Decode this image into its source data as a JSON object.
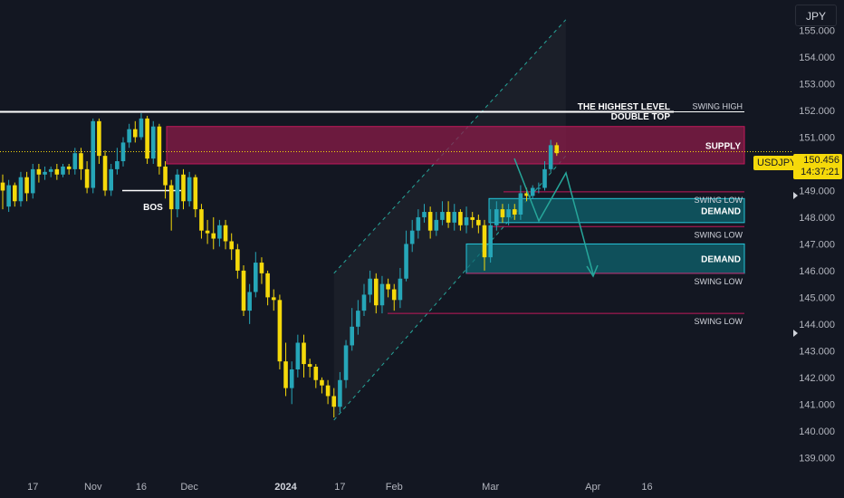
{
  "currency": "JPY",
  "symbol": "USDJPY",
  "last_price": "150.456",
  "countdown": "14:37:21",
  "colors": {
    "background": "#131722",
    "up": "#26a6b8",
    "down": "#f5d90a",
    "supply": "#8b1c48",
    "demand": "#0e6a73",
    "text": "#d1d4dc",
    "muted": "#787b86"
  },
  "chart_data": {
    "type": "candlestick",
    "y_axis": {
      "ticks": [
        "155.000",
        "154.000",
        "153.000",
        "152.000",
        "151.000",
        "150.000",
        "149.000",
        "148.000",
        "147.000",
        "146.000",
        "145.000",
        "144.000",
        "143.000",
        "142.000",
        "141.000",
        "140.000",
        "139.000"
      ],
      "range": [
        138.5,
        155.8
      ]
    },
    "x_axis": {
      "ticks": [
        {
          "label": "17",
          "index": 5
        },
        {
          "label": "Nov",
          "index": 15
        },
        {
          "label": "16",
          "index": 23
        },
        {
          "label": "Dec",
          "index": 31
        },
        {
          "label": "2024",
          "index": 47
        },
        {
          "label": "17",
          "index": 56
        },
        {
          "label": "Feb",
          "index": 65
        },
        {
          "label": "Mar",
          "index": 81
        },
        {
          "label": "Apr",
          "index": 98
        },
        {
          "label": "16",
          "index": 107
        }
      ]
    },
    "candles": [
      [
        149.3,
        149.0,
        148.3,
        149.6
      ],
      [
        148.4,
        149.2,
        148.2,
        149.4
      ],
      [
        149.2,
        148.6,
        148.4,
        149.3
      ],
      [
        148.6,
        149.5,
        148.4,
        149.7
      ],
      [
        149.5,
        148.9,
        148.6,
        149.7
      ],
      [
        148.9,
        149.8,
        148.7,
        150.0
      ],
      [
        149.8,
        149.6,
        149.3,
        150.0
      ],
      [
        149.6,
        149.7,
        149.4,
        149.9
      ],
      [
        149.7,
        149.8,
        149.5,
        149.9
      ],
      [
        149.8,
        149.6,
        149.4,
        150.0
      ],
      [
        149.6,
        149.9,
        149.5,
        150.0
      ],
      [
        149.9,
        149.8,
        149.6,
        150.0
      ],
      [
        149.8,
        150.4,
        149.6,
        150.6
      ],
      [
        150.4,
        149.8,
        149.4,
        150.6
      ],
      [
        149.8,
        149.1,
        148.9,
        150.1
      ],
      [
        149.1,
        151.6,
        148.9,
        151.7
      ],
      [
        151.6,
        150.3,
        150.0,
        151.7
      ],
      [
        150.3,
        149.0,
        148.8,
        150.5
      ],
      [
        149.0,
        149.8,
        148.8,
        150.0
      ],
      [
        149.8,
        150.1,
        149.6,
        150.6
      ],
      [
        150.1,
        150.8,
        149.9,
        151.0
      ],
      [
        150.8,
        151.3,
        150.6,
        151.5
      ],
      [
        151.3,
        151.0,
        150.8,
        151.6
      ],
      [
        151.0,
        151.7,
        150.9,
        151.9
      ],
      [
        151.7,
        150.2,
        150.0,
        151.8
      ],
      [
        150.2,
        151.4,
        150.0,
        151.6
      ],
      [
        151.4,
        149.9,
        149.6,
        151.5
      ],
      [
        149.9,
        149.2,
        148.7,
        150.1
      ],
      [
        149.2,
        148.3,
        147.5,
        149.4
      ],
      [
        148.3,
        149.6,
        148.0,
        149.8
      ],
      [
        149.6,
        148.6,
        148.3,
        149.8
      ],
      [
        148.6,
        149.5,
        148.4,
        149.7
      ],
      [
        149.5,
        148.3,
        148.0,
        149.6
      ],
      [
        148.3,
        147.5,
        147.2,
        148.5
      ],
      [
        147.5,
        147.4,
        147.0,
        147.9
      ],
      [
        147.4,
        147.2,
        146.8,
        148.0
      ],
      [
        147.2,
        147.7,
        146.9,
        147.9
      ],
      [
        147.7,
        147.1,
        146.8,
        147.9
      ],
      [
        147.1,
        146.8,
        146.4,
        147.4
      ],
      [
        146.8,
        146.0,
        145.7,
        147.0
      ],
      [
        146.0,
        144.5,
        144.3,
        146.2
      ],
      [
        144.5,
        145.2,
        144.0,
        145.5
      ],
      [
        145.2,
        146.3,
        145.0,
        146.7
      ],
      [
        146.3,
        145.9,
        145.5,
        146.5
      ],
      [
        145.9,
        145.0,
        144.7,
        146.0
      ],
      [
        145.0,
        144.9,
        144.5,
        145.3
      ],
      [
        144.9,
        142.6,
        142.3,
        145.1
      ],
      [
        142.6,
        141.6,
        141.3,
        143.3
      ],
      [
        141.6,
        142.3,
        141.0,
        142.6
      ],
      [
        142.3,
        143.3,
        142.0,
        143.6
      ],
      [
        143.3,
        142.5,
        142.0,
        143.6
      ],
      [
        142.5,
        142.4,
        142.0,
        142.7
      ],
      [
        142.4,
        141.9,
        141.6,
        142.5
      ],
      [
        141.9,
        141.7,
        141.4,
        142.0
      ],
      [
        141.7,
        141.3,
        141.0,
        141.9
      ],
      [
        141.3,
        140.9,
        140.5,
        141.6
      ],
      [
        140.9,
        141.9,
        140.7,
        142.2
      ],
      [
        141.9,
        143.2,
        141.6,
        143.4
      ],
      [
        143.2,
        143.9,
        143.0,
        144.6
      ],
      [
        143.9,
        144.5,
        143.6,
        144.9
      ],
      [
        144.5,
        145.1,
        144.3,
        145.5
      ],
      [
        145.1,
        145.7,
        144.8,
        146.0
      ],
      [
        145.7,
        144.7,
        144.4,
        145.9
      ],
      [
        144.7,
        145.5,
        144.4,
        145.8
      ],
      [
        145.5,
        145.3,
        145.0,
        145.7
      ],
      [
        145.3,
        144.9,
        144.5,
        145.5
      ],
      [
        144.9,
        145.7,
        144.6,
        146.1
      ],
      [
        145.7,
        147.0,
        145.6,
        147.5
      ],
      [
        147.0,
        147.5,
        146.7,
        147.9
      ],
      [
        147.5,
        148.0,
        147.2,
        148.3
      ],
      [
        148.0,
        148.2,
        147.8,
        148.5
      ],
      [
        148.2,
        147.5,
        147.2,
        148.4
      ],
      [
        147.5,
        147.9,
        147.3,
        148.2
      ],
      [
        147.9,
        148.2,
        147.7,
        148.6
      ],
      [
        148.2,
        147.8,
        147.6,
        148.6
      ],
      [
        147.8,
        148.2,
        147.5,
        148.5
      ],
      [
        148.2,
        147.7,
        147.5,
        148.3
      ],
      [
        147.7,
        148.0,
        147.4,
        148.4
      ],
      [
        148.0,
        147.9,
        147.6,
        148.2
      ],
      [
        147.9,
        147.7,
        147.4,
        148.1
      ],
      [
        147.7,
        146.5,
        146.0,
        147.9
      ],
      [
        146.5,
        147.7,
        146.3,
        148.3
      ],
      [
        147.7,
        148.3,
        147.5,
        148.6
      ],
      [
        148.3,
        148.0,
        147.8,
        148.5
      ],
      [
        148.0,
        148.3,
        147.7,
        148.5
      ],
      [
        148.3,
        148.1,
        147.9,
        148.5
      ],
      [
        148.1,
        148.9,
        147.9,
        149.2
      ],
      [
        148.9,
        148.8,
        148.6,
        149.1
      ],
      [
        148.8,
        149.1,
        148.7,
        149.2
      ],
      [
        149.1,
        149.1,
        148.9,
        149.3
      ],
      [
        149.1,
        149.8,
        149.0,
        150.1
      ],
      [
        149.8,
        150.7,
        149.7,
        150.9
      ],
      [
        150.7,
        150.4,
        150.3,
        150.8
      ]
    ],
    "zones": [
      {
        "label": "SUPPLY",
        "top": 151.4,
        "bottom": 150.0,
        "type": "supply"
      },
      {
        "label": "DEMAND",
        "top": 148.7,
        "bottom": 147.8,
        "type": "demand"
      },
      {
        "label": "DEMAND",
        "top": 147.0,
        "bottom": 145.9,
        "type": "demand"
      }
    ],
    "levels": [
      {
        "label": "SWING HIGH",
        "price": 151.95
      },
      {
        "label": "SWING LOW",
        "price": 148.95
      },
      {
        "label": "SWING LOW",
        "price": 147.65
      },
      {
        "label": "SWING LOW",
        "price": 145.9
      },
      {
        "label": "SWING LOW",
        "price": 144.4
      }
    ],
    "annotations": {
      "title_line1": "THE HIGHEST LEVEL",
      "title_line2": "DOUBLE TOP",
      "bos": "BOS"
    }
  }
}
